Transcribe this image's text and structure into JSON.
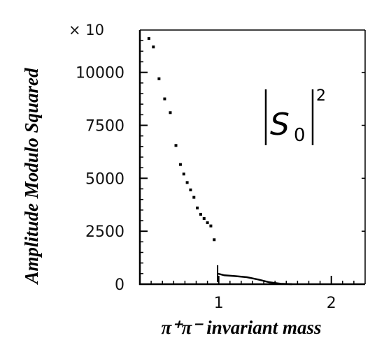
{
  "chart_data": {
    "type": "scatter",
    "title": "",
    "ylabel": "Amplitude Modulo Squared",
    "xlabel": "π⁺π⁻ invariant mass",
    "y_multiplier": "× 10",
    "annotation": {
      "symbol": "S",
      "subscript": "0",
      "superscript": "2"
    },
    "xlim": [
      0.3,
      2.3
    ],
    "ylim": [
      0,
      12000
    ],
    "x_ticks": [
      1,
      2
    ],
    "x_tick_labels": [
      "1",
      "2"
    ],
    "y_ticks": [
      0,
      2500,
      5000,
      7500,
      10000
    ],
    "y_tick_labels": [
      "0",
      "2500",
      "5000",
      "7500",
      "10000"
    ],
    "grid": false,
    "series": [
      {
        "points": [
          {
            "x": 0.38,
            "y": 11600
          },
          {
            "x": 0.42,
            "y": 11200
          },
          {
            "x": 0.47,
            "y": 9700
          },
          {
            "x": 0.52,
            "y": 8750
          },
          {
            "x": 0.57,
            "y": 8100
          },
          {
            "x": 0.62,
            "y": 6550
          },
          {
            "x": 0.66,
            "y": 5650
          },
          {
            "x": 0.69,
            "y": 5200
          },
          {
            "x": 0.72,
            "y": 4800
          },
          {
            "x": 0.75,
            "y": 4450
          },
          {
            "x": 0.78,
            "y": 4100
          },
          {
            "x": 0.81,
            "y": 3600
          },
          {
            "x": 0.84,
            "y": 3300
          },
          {
            "x": 0.87,
            "y": 3100
          },
          {
            "x": 0.9,
            "y": 2900
          },
          {
            "x": 0.93,
            "y": 2750
          },
          {
            "x": 0.96,
            "y": 2100
          }
        ]
      },
      {
        "line": [
          {
            "x": 0.99,
            "y": 500
          },
          {
            "x": 1.05,
            "y": 420
          },
          {
            "x": 1.15,
            "y": 380
          },
          {
            "x": 1.25,
            "y": 330
          },
          {
            "x": 1.35,
            "y": 220
          },
          {
            "x": 1.45,
            "y": 90
          },
          {
            "x": 1.55,
            "y": 20
          },
          {
            "x": 1.65,
            "y": 0
          }
        ]
      }
    ]
  }
}
